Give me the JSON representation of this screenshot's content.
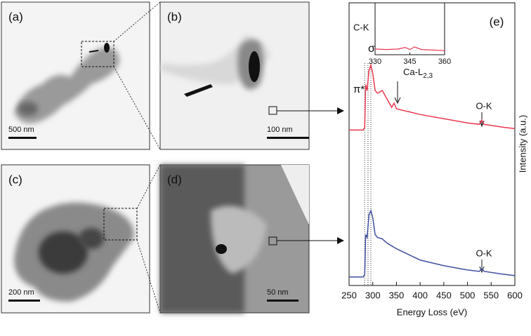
{
  "panels": [
    {
      "label": "(a)",
      "scale_bar": "500 nm"
    },
    {
      "label": "(b)",
      "scale_bar": "100 nm"
    },
    {
      "label": "(c)",
      "scale_bar": "200 nm"
    },
    {
      "label": "(d)",
      "scale_bar": "50 nm"
    }
  ],
  "chart_data": {
    "type": "line",
    "panel_label": "(e)",
    "x_label": "Energy Loss (eV)",
    "y_label": "Intensity (a.u.)",
    "xlim": [
      250,
      600
    ],
    "xticks": [
      250,
      300,
      350,
      400,
      450,
      500,
      550,
      600
    ],
    "ylim": [
      0,
      10
    ],
    "x": [
      250,
      270,
      280,
      283,
      285,
      288,
      292,
      296,
      300,
      305,
      310,
      320,
      330,
      340,
      345,
      350,
      375,
      400,
      450,
      500,
      525,
      530,
      535,
      575,
      600
    ],
    "series": [
      {
        "color": "#e8384f",
        "values": [
          5.5,
          5.5,
          5.5,
          5.6,
          7.1,
          6.9,
          7.6,
          7.8,
          7.5,
          6.9,
          6.8,
          6.9,
          6.6,
          6.3,
          6.45,
          6.25,
          6.15,
          6.05,
          5.9,
          5.75,
          5.7,
          5.85,
          5.7,
          5.6,
          5.55
        ]
      },
      {
        "color": "#3f4fa0",
        "values": [
          0.3,
          0.3,
          0.3,
          0.4,
          1.8,
          1.7,
          2.5,
          2.65,
          2.4,
          1.8,
          1.7,
          1.65,
          1.5,
          1.4,
          1.35,
          1.3,
          1.1,
          0.9,
          0.7,
          0.55,
          0.5,
          0.6,
          0.5,
          0.4,
          0.35
        ]
      }
    ],
    "reference_lines": [
      283,
      290,
      296
    ],
    "annotations": {
      "edge": "C-K",
      "sigma": "σ*",
      "pi": "π*",
      "ca": "Ca-L",
      "ca_sub": "2,3",
      "ok_top": "O-K",
      "ok_bottom": "O-K"
    },
    "inset": {
      "xlim": [
        330,
        360
      ],
      "xticks": [
        330,
        345,
        360
      ],
      "ylim": [
        0,
        10
      ],
      "x": [
        330,
        335,
        340,
        343,
        345,
        347,
        350,
        355,
        360
      ],
      "values": [
        1.1,
        1.0,
        1.1,
        1.4,
        1.0,
        1.5,
        1.0,
        0.9,
        0.8
      ]
    }
  }
}
